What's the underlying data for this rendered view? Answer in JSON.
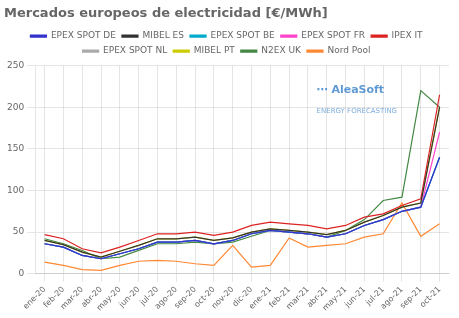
{
  "chart_data": {
    "type": "line",
    "title": "Mercados europeos de electricidad [€/MWh]",
    "categories": [
      "ene-20",
      "feb-20",
      "mar-20",
      "abr-20",
      "may-20",
      "jun-20",
      "jul-20",
      "ago-20",
      "sep-20",
      "oct-20",
      "nov-20",
      "dic-20",
      "ene-21",
      "feb-21",
      "mar-21",
      "abr-21",
      "may-21",
      "jun-21",
      "jul-21",
      "ago-21",
      "sep-21",
      "oct-21"
    ],
    "series": [
      {
        "name": "EPEX SPOT DE",
        "color": "#3333cc",
        "values": [
          36,
          32,
          22,
          18,
          24,
          30,
          38,
          38,
          40,
          36,
          40,
          48,
          52,
          50,
          48,
          44,
          48,
          58,
          65,
          75,
          80,
          140
        ]
      },
      {
        "name": "MIBEL ES",
        "color": "#333333",
        "values": [
          40,
          35,
          26,
          20,
          27,
          34,
          42,
          42,
          44,
          40,
          43,
          50,
          54,
          52,
          50,
          47,
          52,
          62,
          70,
          80,
          85,
          200
        ]
      },
      {
        "name": "EPEX SPOT BE",
        "color": "#00aacc",
        "values": [
          36,
          32,
          22,
          18,
          24,
          30,
          38,
          38,
          40,
          36,
          40,
          48,
          52,
          50,
          48,
          44,
          48,
          58,
          65,
          75,
          80,
          140
        ]
      },
      {
        "name": "EPEX SPOT FR",
        "color": "#ff44cc",
        "values": [
          36,
          32,
          22,
          18,
          24,
          30,
          38,
          38,
          40,
          36,
          40,
          48,
          52,
          50,
          48,
          44,
          48,
          58,
          65,
          75,
          80,
          170
        ]
      },
      {
        "name": "IPEX IT",
        "color": "#dd2222",
        "values": [
          47,
          42,
          30,
          25,
          32,
          40,
          48,
          48,
          50,
          46,
          50,
          58,
          62,
          60,
          58,
          54,
          58,
          68,
          72,
          82,
          90,
          215
        ]
      },
      {
        "name": "EPEX SPOT NL",
        "color": "#aaaaaa",
        "values": [
          36,
          32,
          22,
          18,
          24,
          30,
          38,
          38,
          40,
          36,
          40,
          48,
          52,
          50,
          48,
          44,
          48,
          58,
          65,
          75,
          80,
          140
        ]
      },
      {
        "name": "MIBEL PT",
        "color": "#cccc00",
        "values": [
          40,
          35,
          26,
          20,
          27,
          34,
          42,
          42,
          44,
          40,
          43,
          50,
          54,
          52,
          50,
          47,
          52,
          62,
          70,
          80,
          85,
          200
        ]
      },
      {
        "name": "N2EX UK",
        "color": "#448844",
        "values": [
          42,
          36,
          28,
          18,
          20,
          28,
          36,
          36,
          38,
          36,
          38,
          45,
          52,
          50,
          48,
          44,
          52,
          65,
          88,
          92,
          220,
          200
        ]
      },
      {
        "name": "Nord Pool",
        "color": "#ff8833",
        "values": [
          14,
          10,
          5,
          4,
          10,
          15,
          16,
          15,
          12,
          10,
          34,
          8,
          10,
          43,
          32,
          34,
          36,
          44,
          48,
          85,
          45,
          60
        ]
      }
    ],
    "ylim": [
      0,
      250
    ],
    "yticks": [
      0,
      50,
      100,
      150,
      200,
      250
    ],
    "grid": true,
    "legend": "top",
    "annotations": [
      "⋯ AleaSoft",
      "ENERGY FORECASTING"
    ]
  }
}
